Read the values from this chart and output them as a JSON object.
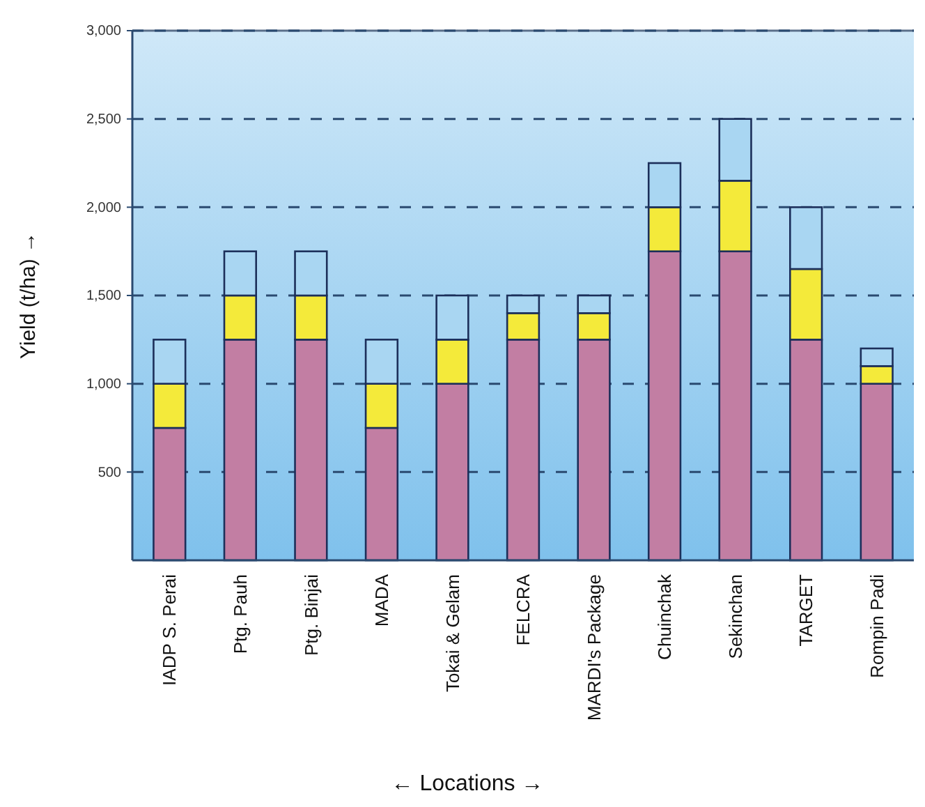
{
  "chart_data": {
    "type": "bar",
    "stacked": true,
    "xlabel": "← Locations →",
    "ylabel": "Yield (t/ha) →",
    "categories": [
      "IADP S. Perai",
      "Ptg. Pauh",
      "Ptg. Binjai",
      "MADA",
      "Tokai & Gelam",
      "FELCRA",
      "MARDI's Package",
      "Chuinchak",
      "Sekinchan",
      "TARGET",
      "Rompin Padi"
    ],
    "series": [
      {
        "color": "#c27ea3",
        "values": [
          750,
          1250,
          1250,
          750,
          1000,
          1250,
          1250,
          1750,
          1750,
          1250,
          1000
        ]
      },
      {
        "color": "#f4ea3a",
        "values": [
          250,
          250,
          250,
          250,
          250,
          150,
          150,
          250,
          400,
          400,
          100
        ]
      },
      {
        "color": "#a9d6f2",
        "values": [
          250,
          250,
          250,
          250,
          250,
          100,
          100,
          250,
          350,
          350,
          100
        ]
      }
    ],
    "ylim": [
      0,
      3000
    ],
    "yticks": [
      {
        "value": 500,
        "label": "500"
      },
      {
        "value": 1000,
        "label": "1,000"
      },
      {
        "value": 1500,
        "label": "1,500"
      },
      {
        "value": 2000,
        "label": "2,000"
      },
      {
        "value": 2500,
        "label": "2,500"
      },
      {
        "value": 3000,
        "label": "3,000"
      }
    ],
    "grid": "y"
  }
}
